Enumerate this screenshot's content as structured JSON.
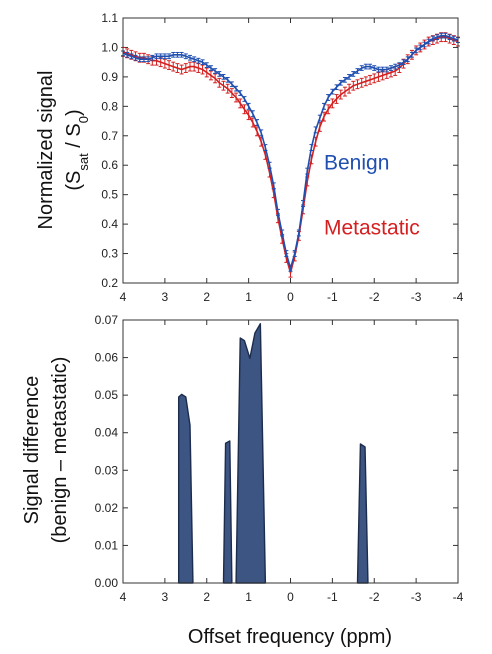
{
  "colors": {
    "benign": "#1f4fb0",
    "metastatic": "#d42020",
    "area_fill": "#3d5583",
    "area_edge": "#1c2c4c",
    "axis": "#333333"
  },
  "chart_data": [
    {
      "type": "line",
      "ylabel_line1": "Normalized signal",
      "ylabel_line2": {
        "open": "(S",
        "sub1": "sat",
        "mid": " / S",
        "sub2": "0",
        "close": ")"
      },
      "xlim": [
        4,
        -4
      ],
      "ylim": [
        0.2,
        1.1
      ],
      "xticks": [
        4,
        3,
        2,
        1,
        0,
        -1,
        -2,
        -3,
        -4
      ],
      "xtick_labels": [
        "4",
        "3",
        "2",
        "1",
        "0",
        "-1",
        "-2",
        "-3",
        "-4"
      ],
      "yticks": [
        0.2,
        0.3,
        0.4,
        0.5,
        0.6,
        0.7,
        0.8,
        0.9,
        1.0,
        1.1
      ],
      "ytick_labels": [
        "0.2",
        "0.3",
        "0.4",
        "0.5",
        "0.6",
        "0.7",
        "0.8",
        "0.9",
        "1.0",
        "1.1"
      ],
      "grid": false,
      "annotations": [
        {
          "text": "Benign",
          "series": "benign",
          "x": -0.8,
          "y": 0.585
        },
        {
          "text": "Metastatic",
          "series": "metastatic",
          "x": -0.8,
          "y": 0.365
        }
      ],
      "x": [
        4.0,
        3.9,
        3.8,
        3.7,
        3.6,
        3.5,
        3.4,
        3.3,
        3.2,
        3.1,
        3.0,
        2.9,
        2.8,
        2.7,
        2.6,
        2.5,
        2.4,
        2.3,
        2.2,
        2.1,
        2.0,
        1.9,
        1.8,
        1.7,
        1.6,
        1.5,
        1.4,
        1.3,
        1.2,
        1.1,
        1.0,
        0.9,
        0.8,
        0.7,
        0.6,
        0.5,
        0.4,
        0.3,
        0.2,
        0.1,
        0.0,
        -0.1,
        -0.2,
        -0.3,
        -0.4,
        -0.5,
        -0.6,
        -0.7,
        -0.8,
        -0.9,
        -1.0,
        -1.1,
        -1.2,
        -1.3,
        -1.4,
        -1.5,
        -1.6,
        -1.7,
        -1.8,
        -1.9,
        -2.0,
        -2.1,
        -2.2,
        -2.3,
        -2.4,
        -2.5,
        -2.6,
        -2.7,
        -2.8,
        -2.9,
        -3.0,
        -3.1,
        -3.2,
        -3.3,
        -3.4,
        -3.5,
        -3.6,
        -3.7,
        -3.8,
        -3.9,
        -4.0
      ],
      "series": [
        {
          "key": "benign",
          "values": [
            0.98,
            0.975,
            0.97,
            0.965,
            0.96,
            0.96,
            0.96,
            0.965,
            0.97,
            0.97,
            0.97,
            0.97,
            0.975,
            0.975,
            0.975,
            0.97,
            0.965,
            0.96,
            0.955,
            0.95,
            0.94,
            0.93,
            0.92,
            0.91,
            0.9,
            0.89,
            0.875,
            0.86,
            0.845,
            0.825,
            0.8,
            0.775,
            0.745,
            0.71,
            0.66,
            0.6,
            0.53,
            0.44,
            0.37,
            0.3,
            0.25,
            0.3,
            0.37,
            0.47,
            0.58,
            0.66,
            0.72,
            0.76,
            0.8,
            0.83,
            0.85,
            0.865,
            0.88,
            0.89,
            0.9,
            0.91,
            0.92,
            0.93,
            0.935,
            0.935,
            0.93,
            0.925,
            0.925,
            0.925,
            0.93,
            0.935,
            0.94,
            0.95,
            0.96,
            0.975,
            0.99,
            1.0,
            1.01,
            1.02,
            1.03,
            1.035,
            1.04,
            1.04,
            1.035,
            1.03,
            1.025
          ],
          "errors": [
            0.008,
            0.008,
            0.008,
            0.008,
            0.008,
            0.008,
            0.008,
            0.008,
            0.008,
            0.008,
            0.008,
            0.008,
            0.008,
            0.008,
            0.008,
            0.008,
            0.008,
            0.008,
            0.008,
            0.008,
            0.008,
            0.008,
            0.008,
            0.008,
            0.008,
            0.008,
            0.008,
            0.008,
            0.008,
            0.008,
            0.01,
            0.01,
            0.01,
            0.01,
            0.01,
            0.01,
            0.01,
            0.01,
            0.01,
            0.01,
            0.01,
            0.01,
            0.01,
            0.01,
            0.01,
            0.01,
            0.01,
            0.01,
            0.01,
            0.01,
            0.008,
            0.008,
            0.008,
            0.008,
            0.008,
            0.008,
            0.008,
            0.008,
            0.008,
            0.008,
            0.008,
            0.008,
            0.008,
            0.008,
            0.008,
            0.008,
            0.008,
            0.008,
            0.008,
            0.008,
            0.008,
            0.008,
            0.008,
            0.008,
            0.008,
            0.008,
            0.008,
            0.008,
            0.008,
            0.008,
            0.008
          ]
        },
        {
          "key": "metastatic",
          "values": [
            0.985,
            0.98,
            0.975,
            0.97,
            0.965,
            0.965,
            0.96,
            0.955,
            0.955,
            0.95,
            0.945,
            0.94,
            0.935,
            0.93,
            0.925,
            0.93,
            0.935,
            0.935,
            0.93,
            0.925,
            0.915,
            0.905,
            0.895,
            0.88,
            0.87,
            0.86,
            0.845,
            0.83,
            0.81,
            0.79,
            0.77,
            0.745,
            0.715,
            0.68,
            0.635,
            0.575,
            0.505,
            0.42,
            0.35,
            0.285,
            0.235,
            0.29,
            0.36,
            0.45,
            0.545,
            0.62,
            0.68,
            0.73,
            0.765,
            0.79,
            0.81,
            0.825,
            0.84,
            0.85,
            0.86,
            0.87,
            0.875,
            0.88,
            0.885,
            0.89,
            0.895,
            0.9,
            0.905,
            0.91,
            0.915,
            0.92,
            0.93,
            0.945,
            0.96,
            0.975,
            0.99,
            1.0,
            1.01,
            1.02,
            1.025,
            1.03,
            1.035,
            1.035,
            1.03,
            1.025,
            1.02
          ],
          "errors": [
            0.015,
            0.015,
            0.015,
            0.015,
            0.015,
            0.015,
            0.015,
            0.015,
            0.015,
            0.015,
            0.015,
            0.015,
            0.015,
            0.015,
            0.015,
            0.015,
            0.015,
            0.015,
            0.015,
            0.015,
            0.015,
            0.015,
            0.015,
            0.015,
            0.015,
            0.015,
            0.015,
            0.015,
            0.015,
            0.015,
            0.015,
            0.015,
            0.015,
            0.015,
            0.015,
            0.015,
            0.015,
            0.015,
            0.015,
            0.015,
            0.015,
            0.015,
            0.015,
            0.015,
            0.015,
            0.015,
            0.015,
            0.015,
            0.015,
            0.015,
            0.015,
            0.015,
            0.015,
            0.015,
            0.015,
            0.015,
            0.015,
            0.015,
            0.015,
            0.015,
            0.015,
            0.015,
            0.015,
            0.015,
            0.015,
            0.015,
            0.015,
            0.015,
            0.015,
            0.015,
            0.015,
            0.015,
            0.015,
            0.015,
            0.015,
            0.015,
            0.015,
            0.015,
            0.015,
            0.015,
            0.015
          ]
        }
      ]
    },
    {
      "type": "area",
      "ylabel_line1": "Signal difference",
      "ylabel_line2": "(benign – metastatic)",
      "xlabel": "Offset frequency (ppm)",
      "xlim": [
        4,
        -4
      ],
      "ylim": [
        0,
        0.07
      ],
      "xticks": [
        4,
        3,
        2,
        1,
        0,
        -1,
        -2,
        -3,
        -4
      ],
      "xtick_labels": [
        "4",
        "3",
        "2",
        "1",
        "0",
        "-1",
        "-2",
        "-3",
        "-4"
      ],
      "yticks": [
        0,
        0.01,
        0.02,
        0.03,
        0.04,
        0.05,
        0.06,
        0.07
      ],
      "ytick_labels": [
        "0.00",
        "0.01",
        "0.02",
        "0.03",
        "0.04",
        "0.05",
        "0.06",
        "0.07"
      ],
      "grid": false,
      "regions": [
        {
          "x": [
            2.67,
            2.6,
            2.5,
            2.4,
            2.33
          ],
          "y": [
            0.0495,
            0.0502,
            0.0495,
            0.042,
            0.0
          ]
        },
        {
          "x": [
            1.6,
            1.55,
            1.45,
            1.4
          ],
          "y": [
            0.0,
            0.0372,
            0.0378,
            0.0
          ]
        },
        {
          "x": [
            1.3,
            1.2,
            1.1,
            0.97,
            0.85,
            0.72,
            0.6
          ],
          "y": [
            0.0,
            0.0652,
            0.0645,
            0.0598,
            0.0665,
            0.069,
            0.0
          ]
        },
        {
          "x": [
            -1.6,
            -1.67,
            -1.78,
            -1.85
          ],
          "y": [
            0.0,
            0.037,
            0.0362,
            0.0
          ]
        }
      ]
    }
  ]
}
